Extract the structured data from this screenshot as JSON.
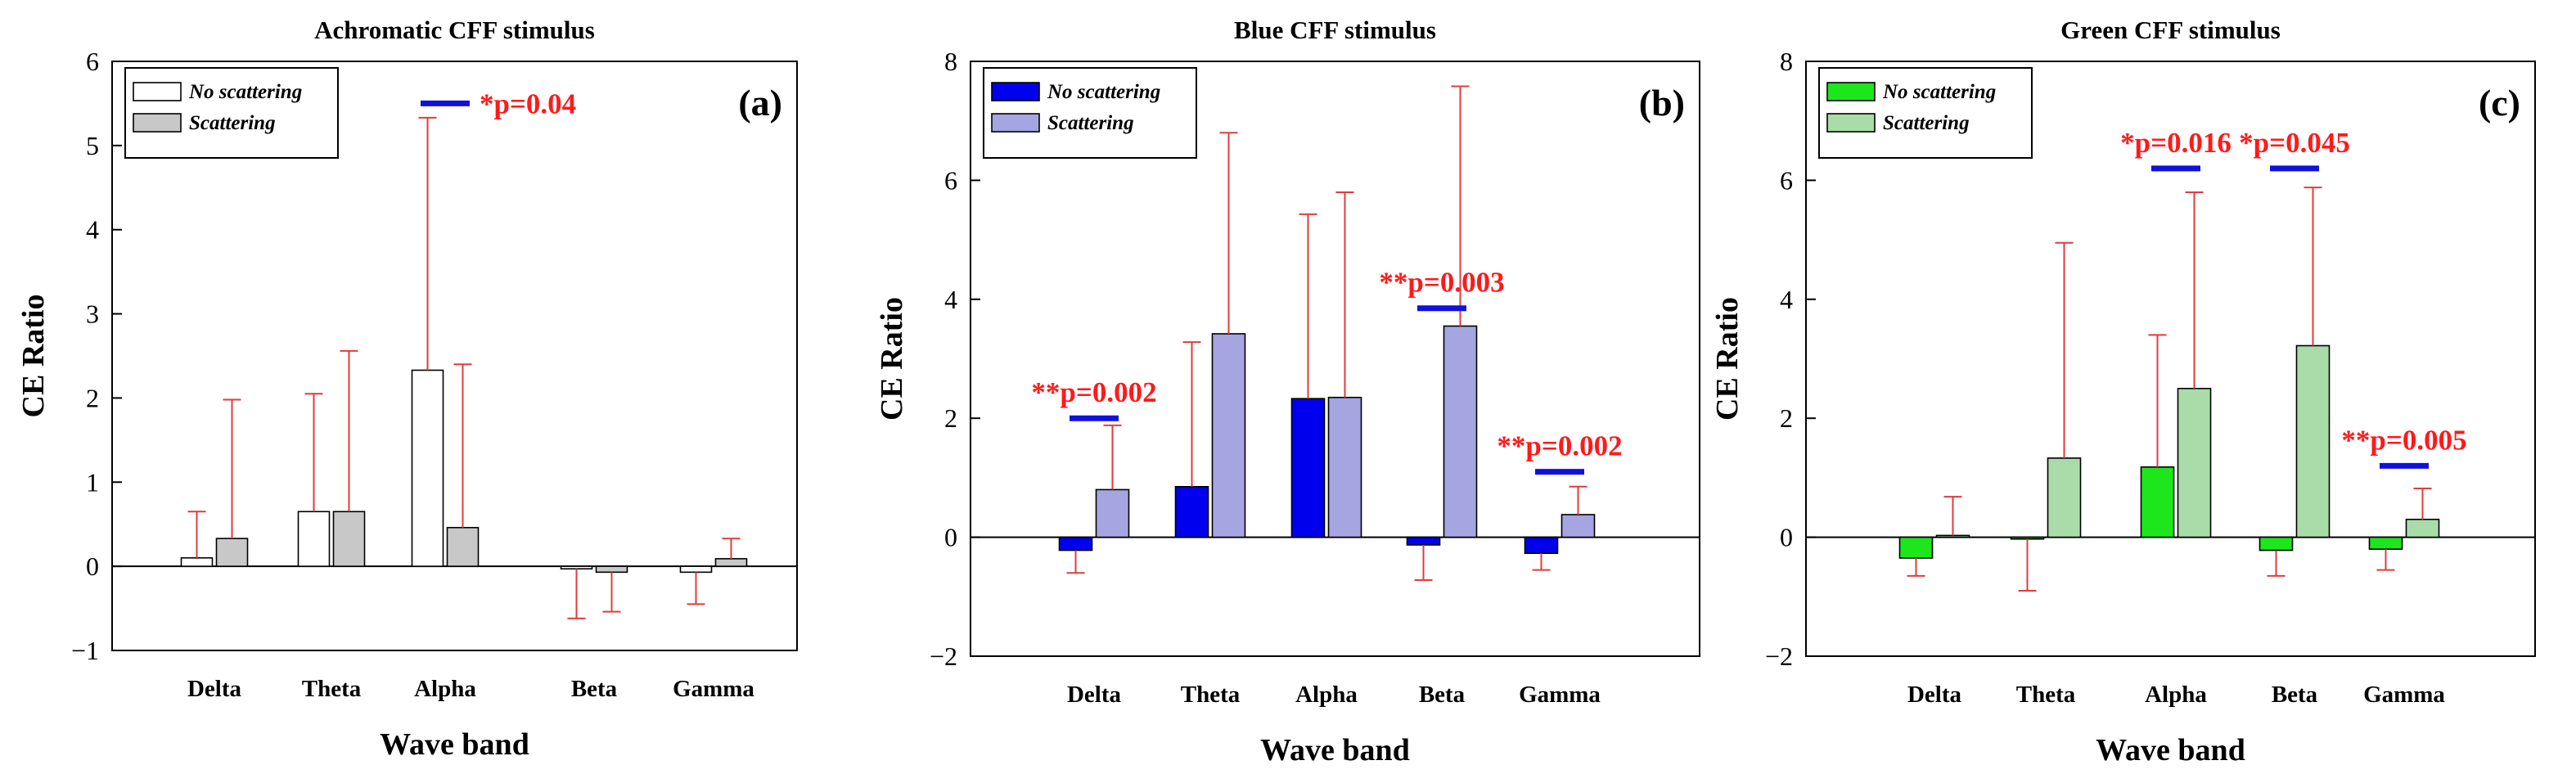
{
  "colors": {
    "error_bar": "#e03c3c",
    "annotation_text": "#ff1a1a",
    "annotation_line": "#1010e0"
  },
  "chart_data": [
    {
      "type": "bar",
      "title": "Achromatic CFF stimulus",
      "panel_label": "(a)",
      "xlabel": "Wave band",
      "ylabel": "CE Ratio",
      "ylim": [
        -1,
        6
      ],
      "yticks": [
        -1,
        0,
        1,
        2,
        3,
        4,
        5,
        6
      ],
      "ytick_labels": [
        "−1",
        "0",
        "1",
        "2",
        "3",
        "4",
        "5",
        "6"
      ],
      "categories": [
        "Delta",
        "Theta",
        "Alpha",
        "Beta",
        "Gamma"
      ],
      "legend_position": "top-left",
      "series": [
        {
          "name": "No scattering",
          "fill": "#ffffff",
          "values": [
            0.1,
            0.65,
            2.33,
            -0.03,
            -0.07
          ],
          "error_up": [
            0.65,
            2.05,
            5.33,
            null,
            null
          ],
          "error_down": [
            null,
            null,
            null,
            -0.62,
            -0.45
          ]
        },
        {
          "name": "Scattering",
          "fill": "#c8c8c8",
          "values": [
            0.33,
            0.65,
            0.46,
            -0.07,
            0.09
          ],
          "error_up": [
            1.98,
            2.56,
            2.4,
            null,
            0.33
          ],
          "error_down": [
            null,
            null,
            null,
            -0.54,
            null
          ]
        }
      ],
      "annotations": [
        {
          "text": "*p=0.04",
          "category": "Alpha",
          "y": 5.5
        }
      ]
    },
    {
      "type": "bar",
      "title": "Blue CFF stimulus",
      "panel_label": "(b)",
      "xlabel": "Wave band",
      "ylabel": "CE Ratio",
      "ylim": [
        -2,
        8
      ],
      "yticks": [
        -2,
        0,
        2,
        4,
        6,
        8
      ],
      "ytick_labels": [
        "−2",
        "0",
        "2",
        "4",
        "6",
        "8"
      ],
      "categories": [
        "Delta",
        "Theta",
        "Alpha",
        "Beta",
        "Gamma"
      ],
      "legend_position": "top-left",
      "series": [
        {
          "name": "No scattering",
          "fill": "#0000ee",
          "values": [
            -0.22,
            0.85,
            2.33,
            -0.13,
            -0.27
          ],
          "error_up": [
            null,
            3.28,
            5.43,
            null,
            null
          ],
          "error_down": [
            -0.6,
            null,
            null,
            -0.72,
            -0.55
          ]
        },
        {
          "name": "Scattering",
          "fill": "#a5a5e2",
          "values": [
            0.8,
            3.42,
            2.35,
            3.55,
            0.38
          ],
          "error_up": [
            1.88,
            6.8,
            5.8,
            7.58,
            0.85
          ],
          "error_down": [
            null,
            null,
            null,
            null,
            null
          ]
        }
      ],
      "annotations": [
        {
          "text": "**p=0.002",
          "category": "Delta",
          "y": 2.0
        },
        {
          "text": "**p=0.003",
          "category": "Beta",
          "y": 3.85
        },
        {
          "text": "**p=0.002",
          "category": "Gamma",
          "y": 1.1
        }
      ]
    },
    {
      "type": "bar",
      "title": "Green CFF stimulus",
      "panel_label": "(c)",
      "xlabel": "Wave band",
      "ylabel": "CE Ratio",
      "ylim": [
        -2,
        8
      ],
      "yticks": [
        -2,
        0,
        2,
        4,
        6,
        8
      ],
      "ytick_labels": [
        "−2",
        "0",
        "2",
        "4",
        "6",
        "8"
      ],
      "categories": [
        "Delta",
        "Theta",
        "Alpha",
        "Beta",
        "Gamma"
      ],
      "legend_position": "top-left",
      "series": [
        {
          "name": "No scattering",
          "fill": "#1de61d",
          "values": [
            -0.35,
            -0.03,
            1.18,
            -0.22,
            -0.2
          ],
          "error_up": [
            null,
            null,
            3.4,
            null,
            null
          ],
          "error_down": [
            -0.65,
            -0.9,
            null,
            -0.65,
            -0.55
          ]
        },
        {
          "name": "Scattering",
          "fill": "#a9dca9",
          "values": [
            0.03,
            1.33,
            2.5,
            3.22,
            0.3
          ],
          "error_up": [
            0.68,
            4.95,
            5.8,
            5.88,
            0.82
          ],
          "error_down": [
            null,
            null,
            null,
            null,
            null
          ]
        }
      ],
      "annotations": [
        {
          "text": "*p=0.016",
          "category": "Alpha",
          "y": 6.2
        },
        {
          "text": "*p=0.045",
          "category": "Beta",
          "y": 6.2
        },
        {
          "text": "**p=0.005",
          "category": "Gamma",
          "y": 1.2
        }
      ]
    }
  ]
}
